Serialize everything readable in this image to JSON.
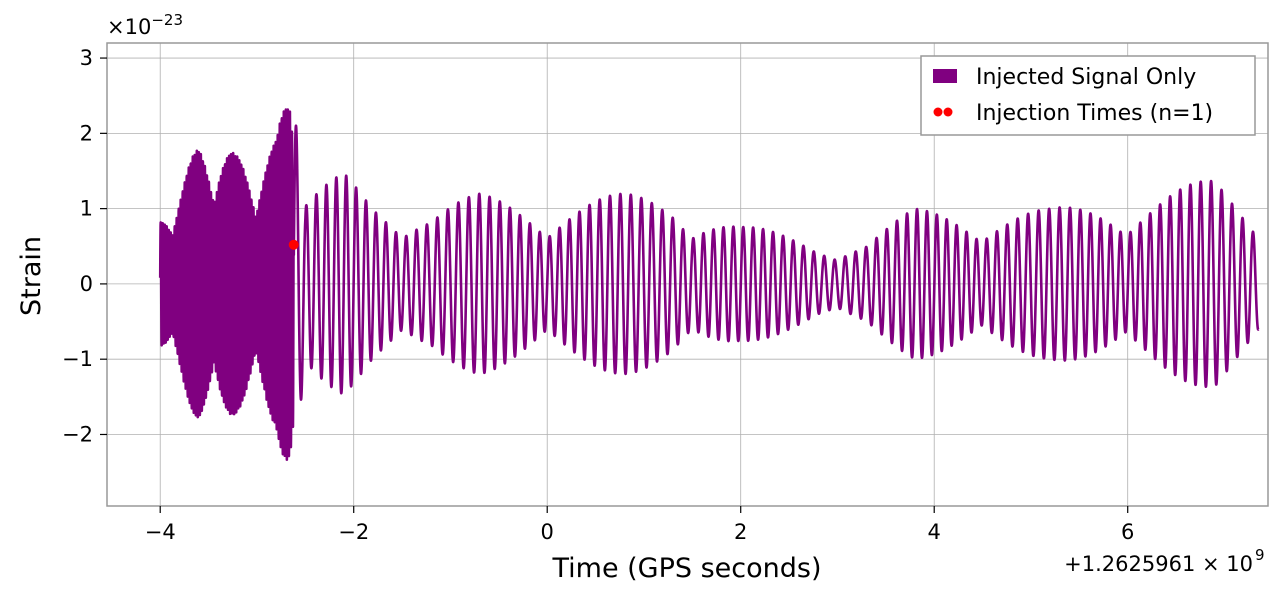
{
  "chart_data": {
    "type": "line",
    "title": "",
    "xlabel": "Time (GPS seconds)",
    "ylabel": "Strain",
    "x_offset_label": "+1.2625961 × 10",
    "x_offset_exp": "9",
    "y_scale_label": "×10",
    "y_scale_exp": "−23",
    "xlim": [
      -4.55,
      7.45
    ],
    "ylim": [
      -2.95,
      3.2
    ],
    "x_ticks": [
      -4,
      -2,
      0,
      2,
      4,
      6
    ],
    "x_tick_labels": [
      "−4",
      "−2",
      "0",
      "2",
      "4",
      "6"
    ],
    "y_ticks": [
      -2,
      -1,
      0,
      1,
      2,
      3
    ],
    "y_tick_labels": [
      "−2",
      "−1",
      "0",
      "1",
      "2",
      "3"
    ],
    "grid": true,
    "legend_position": "top-right",
    "series": [
      {
        "name": "Injected Signal Only",
        "color": "#800080",
        "kind": "line",
        "x_range": [
          -4.0,
          7.35
        ],
        "envelope_peaks": [
          {
            "x": -4.0,
            "amp": 0.9
          },
          {
            "x": -3.9,
            "amp": 1.1
          },
          {
            "x": -3.6,
            "amp": 1.85
          },
          {
            "x": -3.4,
            "amp": 1.9
          },
          {
            "x": -3.2,
            "amp": 1.7
          },
          {
            "x": -3.0,
            "amp": 1.6
          },
          {
            "x": -2.8,
            "amp": 1.9
          },
          {
            "x": -2.66,
            "amp": 2.9
          },
          {
            "x": -2.62,
            "amp": 2.7
          },
          {
            "x": -2.5,
            "amp": 1.1
          },
          {
            "x": -2.1,
            "amp": 1.5
          },
          {
            "x": -1.8,
            "amp": 1.2
          },
          {
            "x": -1.2,
            "amp": 1.0
          },
          {
            "x": -0.7,
            "amp": 1.2
          },
          {
            "x": 0.0,
            "amp": 1.1
          },
          {
            "x": 0.8,
            "amp": 1.2
          },
          {
            "x": 1.3,
            "amp": 1.2
          },
          {
            "x": 2.0,
            "amp": 0.8
          },
          {
            "x": 2.8,
            "amp": 0.55
          },
          {
            "x": 3.3,
            "amp": 0.6
          },
          {
            "x": 3.8,
            "amp": 1.0
          },
          {
            "x": 4.5,
            "amp": 1.0
          },
          {
            "x": 5.2,
            "amp": 1.0
          },
          {
            "x": 5.7,
            "amp": 1.1
          },
          {
            "x": 6.2,
            "amp": 1.2
          },
          {
            "x": 6.9,
            "amp": 1.4
          },
          {
            "x": 7.35,
            "amp": 0.9
          }
        ]
      },
      {
        "name": "Injection Times (n=1)",
        "color": "#ff0000",
        "kind": "scatter",
        "points": [
          {
            "x": -2.62,
            "y": 0.52
          }
        ]
      }
    ]
  }
}
